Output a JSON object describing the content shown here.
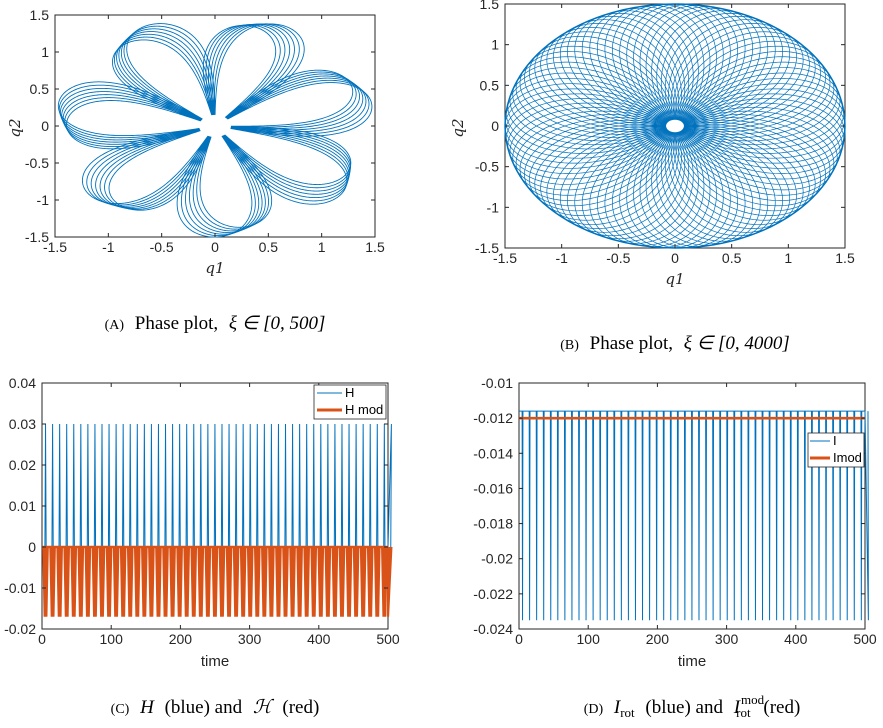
{
  "colors": {
    "blue": "#0072BD",
    "red": "#D95319",
    "axis": "#262626"
  },
  "chart_data": [
    {
      "id": "a",
      "type": "line",
      "plot": "phase-rosette",
      "xlabel": "q1",
      "ylabel": "q2",
      "xlim": [
        -1.5,
        1.5
      ],
      "ylim": [
        -1.5,
        1.5
      ],
      "xticks": [
        "-1.5",
        "-1",
        "-0.5",
        "0",
        "0.5",
        "1",
        "1.5"
      ],
      "yticks": [
        "-1.5",
        "-1",
        "-0.5",
        "0",
        "0.5",
        "1",
        "1.5"
      ],
      "petals": 7,
      "outer_radius": 1.5,
      "inner_radius": 0.15,
      "caption": {
        "label": "(A)",
        "text": "Phase plot,",
        "math": "ξ ∈ [0, 500]"
      }
    },
    {
      "id": "b",
      "type": "line",
      "plot": "phase-disk",
      "xlabel": "q1",
      "ylabel": "q2",
      "xlim": [
        -1.5,
        1.5
      ],
      "ylim": [
        -1.5,
        1.5
      ],
      "xticks": [
        "-1.5",
        "-1",
        "-0.5",
        "0",
        "0.5",
        "1",
        "1.5"
      ],
      "yticks": [
        "-1.5",
        "-1",
        "-0.5",
        "0",
        "0.5",
        "1",
        "1.5"
      ],
      "outer_radius": 1.5,
      "inner_radius": 0.07,
      "caption": {
        "label": "(B)",
        "text": "Phase plot,",
        "math": "ξ ∈ [0, 4000]"
      }
    },
    {
      "id": "c",
      "type": "line",
      "xlabel": "time",
      "xlim": [
        0,
        500
      ],
      "ylim": [
        -0.02,
        0.04
      ],
      "xticks": [
        "0",
        "100",
        "200",
        "300",
        "400",
        "500"
      ],
      "yticks": [
        "-0.02",
        "-0.01",
        "0",
        "0.01",
        "0.02",
        "0.03",
        "0.04"
      ],
      "spike_period": 10.2,
      "series": [
        {
          "name": "H",
          "color": "#0072BD",
          "base": 0,
          "peak": 0.03
        },
        {
          "name": "H mod",
          "color": "#D95319",
          "base": 0,
          "min": -0.017
        }
      ],
      "legend": "top-right",
      "caption": {
        "label": "(C)",
        "a": "H",
        "b": "(blue) and",
        "c": "ℋ",
        "d": "(red)"
      }
    },
    {
      "id": "d",
      "type": "line",
      "xlabel": "time",
      "xlim": [
        0,
        500
      ],
      "ylim": [
        -0.024,
        -0.01
      ],
      "xticks": [
        "0",
        "100",
        "200",
        "300",
        "400",
        "500"
      ],
      "yticks": [
        "-0.024",
        "-0.022",
        "-0.02",
        "-0.018",
        "-0.016",
        "-0.014",
        "-0.012",
        "-0.01"
      ],
      "spike_period": 10.2,
      "series": [
        {
          "name": "I",
          "color": "#0072BD",
          "top": -0.0116,
          "min": -0.0235
        },
        {
          "name": "Imod",
          "color": "#D95319",
          "value": -0.012
        }
      ],
      "legend": "right",
      "caption": {
        "label": "(D)",
        "a": "I",
        "a_sub": "rot",
        "b": "(blue) and",
        "c": "I",
        "c_sup": "mod",
        "c_sub": "rot",
        "d": "(red)"
      }
    }
  ]
}
